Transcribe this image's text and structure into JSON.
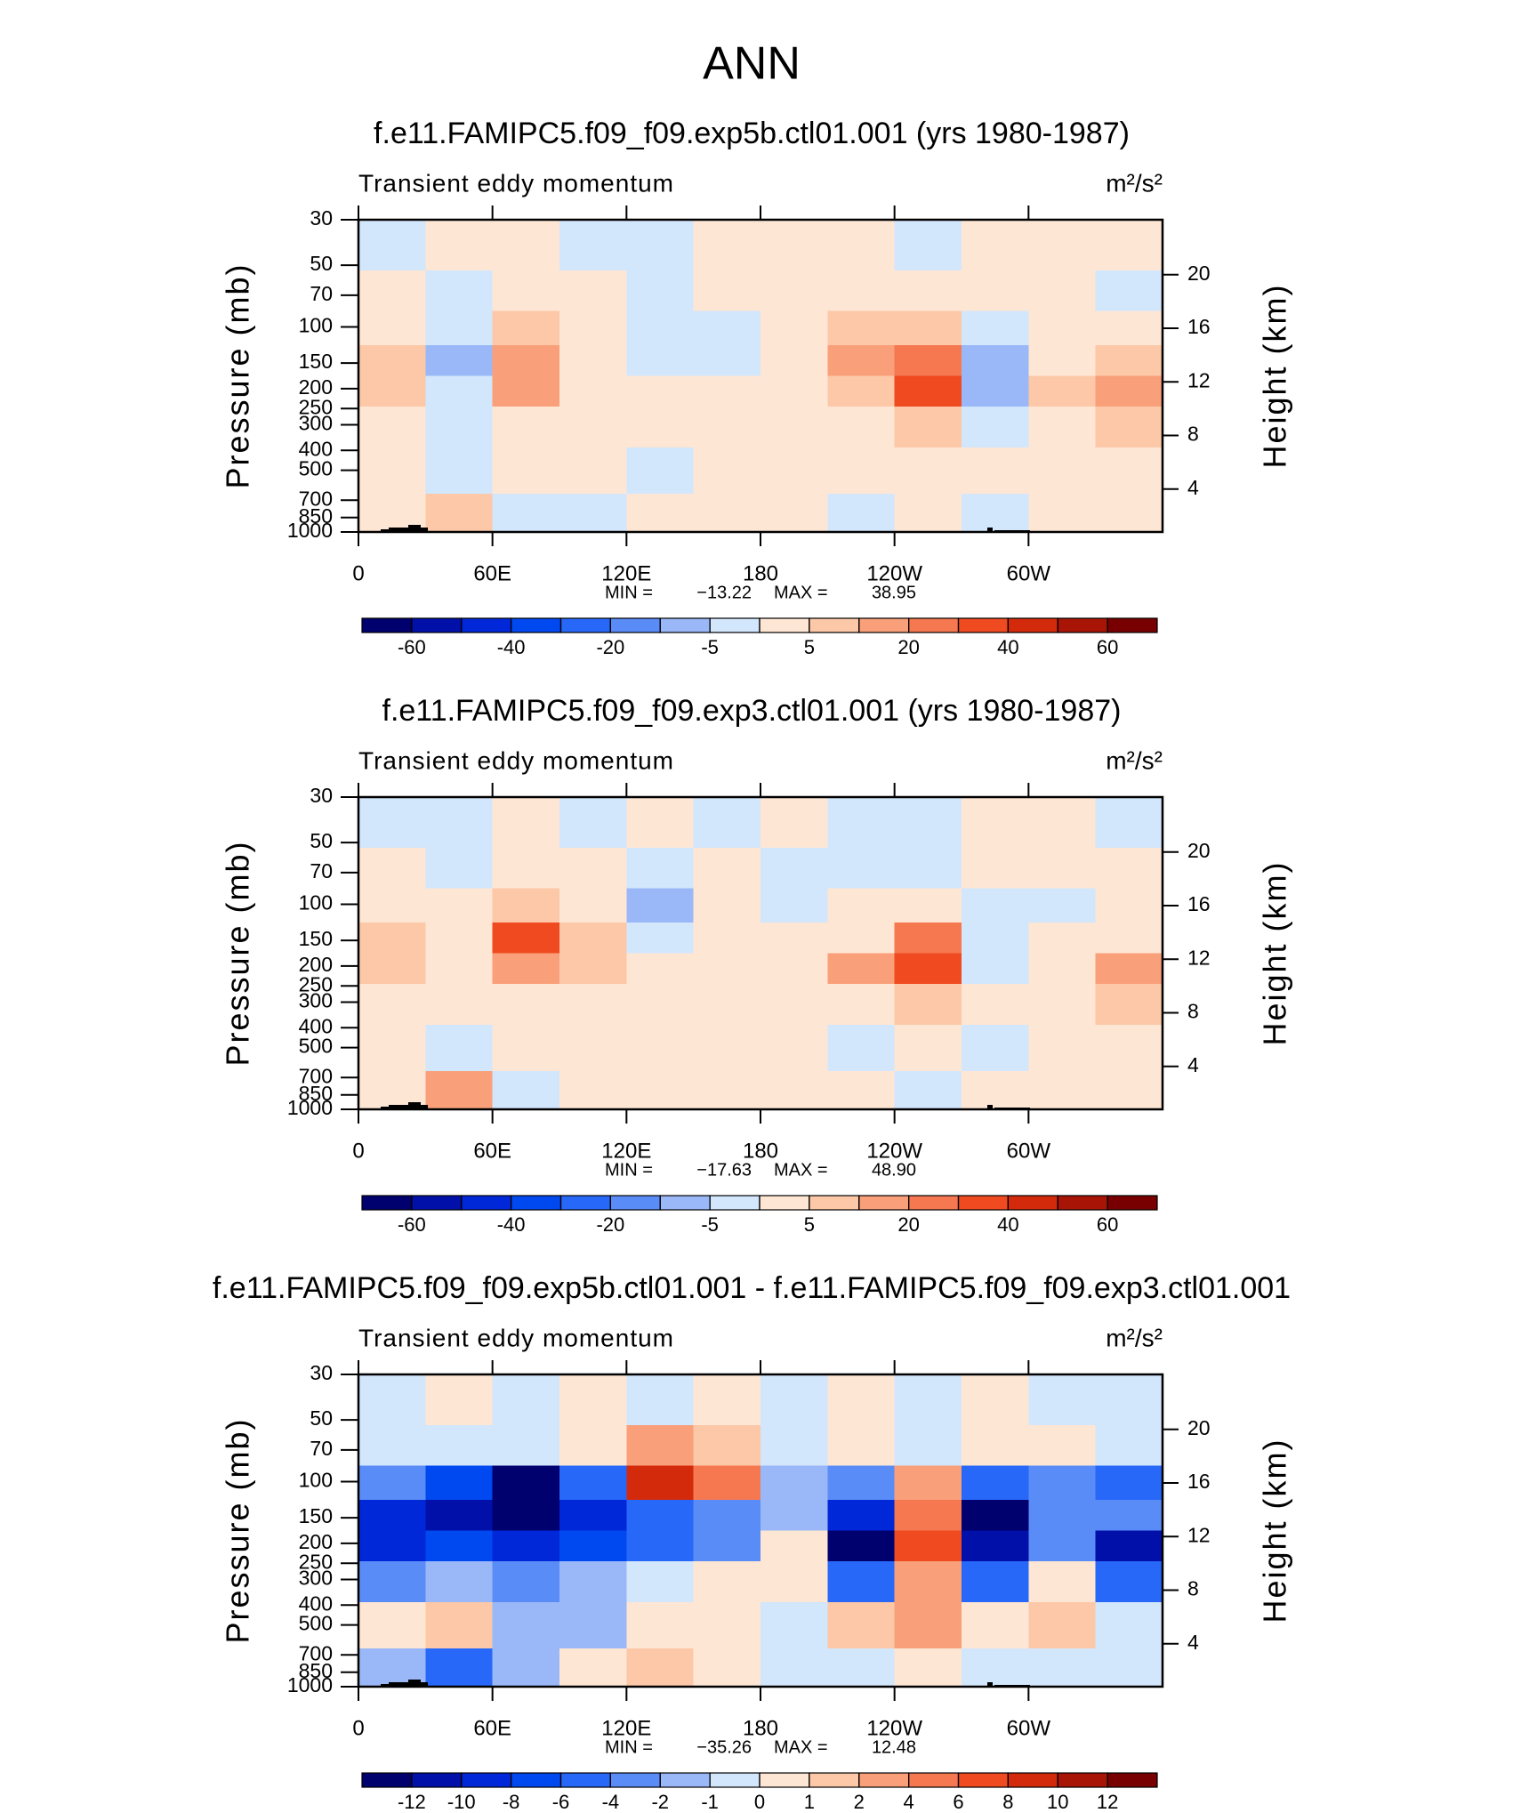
{
  "figure_title": "ANN",
  "chart_data": [
    {
      "type": "contour",
      "title": "f.e11.FAMIPC5.f09_f09.exp5b.ctl01.001 (yrs 1980-1987)",
      "left_string": "Transient eddy momentum",
      "right_string": "m²/s²",
      "ylabel": "Pressure (mb)",
      "y2label": "Height (km)",
      "x": [
        15,
        45,
        75,
        105,
        135,
        165,
        195,
        225,
        255,
        285,
        315,
        345
      ],
      "y": [
        40,
        70,
        100,
        150,
        200,
        300,
        500,
        850
      ],
      "z": [
        [
          -2,
          2,
          2,
          -2,
          -2,
          2,
          2,
          2,
          -2,
          2,
          2,
          2
        ],
        [
          2,
          -2,
          2,
          2,
          -2,
          2,
          2,
          2,
          2,
          2,
          2,
          -2
        ],
        [
          3,
          -2,
          6,
          2,
          -2,
          -2,
          2,
          6,
          8,
          -2,
          2,
          3
        ],
        [
          8,
          -6,
          14,
          3,
          -2,
          -2,
          2,
          12,
          22,
          -8,
          2,
          8
        ],
        [
          8,
          -4,
          12,
          2,
          2,
          2,
          2,
          8,
          32,
          -8,
          6,
          14
        ],
        [
          3,
          -2,
          4,
          2,
          2,
          2,
          2,
          3,
          8,
          -3,
          3,
          8
        ],
        [
          2,
          -2,
          2,
          2,
          -2,
          2,
          2,
          2,
          2,
          2,
          2,
          2
        ],
        [
          2,
          6,
          -2,
          -2,
          2,
          2,
          2,
          -2,
          2,
          -2,
          2,
          2
        ]
      ],
      "xlim": [
        0,
        360
      ],
      "xticks": [
        0,
        {
          "value": 60,
          "label": "60E"
        },
        {
          "value": 120,
          "label": "120E"
        },
        180,
        {
          "value": 240,
          "label": "120W"
        },
        {
          "value": 300,
          "label": "60W"
        }
      ],
      "ylim": [
        1000,
        30
      ],
      "yscale": "log",
      "yticks": [
        30,
        50,
        70,
        100,
        150,
        200,
        250,
        300,
        400,
        500,
        700,
        850,
        1000
      ],
      "y2lim": [
        0.8,
        24.1
      ],
      "y2ticks": [
        4,
        8,
        12,
        16,
        20
      ],
      "levels": [
        -60,
        -50,
        -40,
        -30,
        -20,
        -10,
        -5,
        0,
        5,
        10,
        20,
        30,
        40,
        50,
        60
      ],
      "colors": [
        "#00006e",
        "#0010a8",
        "#0028d8",
        "#0048f0",
        "#2868f8",
        "#5a8cf8",
        "#9ab8f8",
        "#d2e6fc",
        "#fee6d4",
        "#fcc8a8",
        "#f9a07a",
        "#f57850",
        "#f04a20",
        "#d42a0c",
        "#a81406",
        "#780000"
      ],
      "colorbar_ticks": [
        -60,
        -40,
        -20,
        -5,
        5,
        20,
        40,
        60
      ],
      "stats": {
        "names": [
          "MIN =",
          "MAX ="
        ],
        "values": [
          -13.22,
          38.95
        ],
        "value_labels": [
          "−13.22",
          "38.95"
        ]
      }
    },
    {
      "type": "contour",
      "title": "f.e11.FAMIPC5.f09_f09.exp3.ctl01.001 (yrs 1980-1987)",
      "left_string": "Transient eddy momentum",
      "right_string": "m²/s²",
      "ylabel": "Pressure (mb)",
      "y2label": "Height (km)",
      "x": [
        15,
        45,
        75,
        105,
        135,
        165,
        195,
        225,
        255,
        285,
        315,
        345
      ],
      "y": [
        40,
        70,
        100,
        150,
        200,
        300,
        500,
        850
      ],
      "z": [
        [
          -2,
          -2,
          2,
          -2,
          2,
          -2,
          2,
          -2,
          -2,
          2,
          2,
          -2
        ],
        [
          2,
          -2,
          2,
          2,
          -2,
          2,
          -2,
          -2,
          -2,
          2,
          2,
          2
        ],
        [
          3,
          2,
          8,
          2,
          -6,
          2,
          -2,
          2,
          4,
          -2,
          -2,
          2
        ],
        [
          8,
          3,
          32,
          8,
          -2,
          3,
          2,
          4,
          22,
          -3,
          2,
          4
        ],
        [
          8,
          2,
          14,
          6,
          2,
          2,
          2,
          12,
          32,
          -4,
          4,
          18
        ],
        [
          3,
          2,
          4,
          3,
          2,
          2,
          2,
          4,
          8,
          2,
          2,
          6
        ],
        [
          2,
          -2,
          2,
          2,
          2,
          2,
          2,
          -2,
          2,
          -2,
          2,
          2
        ],
        [
          2,
          12,
          -2,
          2,
          2,
          2,
          2,
          2,
          -2,
          2,
          2,
          2
        ]
      ],
      "xlim": [
        0,
        360
      ],
      "xticks": [
        0,
        {
          "value": 60,
          "label": "60E"
        },
        {
          "value": 120,
          "label": "120E"
        },
        180,
        {
          "value": 240,
          "label": "120W"
        },
        {
          "value": 300,
          "label": "60W"
        }
      ],
      "ylim": [
        1000,
        30
      ],
      "yscale": "log",
      "yticks": [
        30,
        50,
        70,
        100,
        150,
        200,
        250,
        300,
        400,
        500,
        700,
        850,
        1000
      ],
      "y2lim": [
        0.8,
        24.1
      ],
      "y2ticks": [
        4,
        8,
        12,
        16,
        20
      ],
      "levels": [
        -60,
        -50,
        -40,
        -30,
        -20,
        -10,
        -5,
        0,
        5,
        10,
        20,
        30,
        40,
        50,
        60
      ],
      "colors": [
        "#00006e",
        "#0010a8",
        "#0028d8",
        "#0048f0",
        "#2868f8",
        "#5a8cf8",
        "#9ab8f8",
        "#d2e6fc",
        "#fee6d4",
        "#fcc8a8",
        "#f9a07a",
        "#f57850",
        "#f04a20",
        "#d42a0c",
        "#a81406",
        "#780000"
      ],
      "colorbar_ticks": [
        -60,
        -40,
        -20,
        -5,
        5,
        20,
        40,
        60
      ],
      "stats": {
        "names": [
          "MIN =",
          "MAX ="
        ],
        "values": [
          -17.63,
          48.9
        ],
        "value_labels": [
          "−17.63",
          "48.90"
        ]
      }
    },
    {
      "type": "contour",
      "title": "f.e11.FAMIPC5.f09_f09.exp5b.ctl01.001 - f.e11.FAMIPC5.f09_f09.exp3.ctl01.001",
      "left_string": "Transient eddy momentum",
      "right_string": "m²/s²",
      "ylabel": "Pressure (mb)",
      "y2label": "Height (km)",
      "x": [
        15,
        45,
        75,
        105,
        135,
        165,
        195,
        225,
        255,
        285,
        315,
        345
      ],
      "y": [
        40,
        70,
        100,
        150,
        200,
        300,
        500,
        850
      ],
      "z": [
        [
          -0.5,
          0.5,
          -0.5,
          0.5,
          -0.5,
          0.5,
          -0.5,
          0.5,
          -0.5,
          0.5,
          -0.5,
          -0.5
        ],
        [
          -0.5,
          -0.5,
          -0.5,
          0.5,
          3,
          1.5,
          -0.5,
          0.5,
          -0.5,
          0.5,
          0.5,
          -0.5
        ],
        [
          -3,
          -7,
          -14,
          -4.5,
          9,
          4.5,
          -1.5,
          -3,
          3,
          -5,
          -2.5,
          -5
        ],
        [
          -9,
          -11,
          -16,
          -9,
          -5,
          -2.5,
          -1.5,
          -9,
          5,
          -13,
          -3,
          -3
        ],
        [
          -9,
          -7,
          -9,
          -7,
          -4.5,
          -2.5,
          0.5,
          -12.5,
          7,
          -11,
          -2.5,
          -11
        ],
        [
          -2.5,
          -1.5,
          -2.5,
          -1.5,
          -0.5,
          0.5,
          0.5,
          -4.5,
          3,
          -4.5,
          0.5,
          -4.5
        ],
        [
          0.5,
          1.5,
          -1.5,
          -1.5,
          0.5,
          0.5,
          -0.5,
          1.5,
          3,
          0.5,
          1.5,
          -0.5
        ],
        [
          -1.5,
          -5,
          -1.5,
          0.5,
          1.5,
          0.5,
          -0.5,
          -0.5,
          0.5,
          -0.5,
          -0.5,
          -0.5
        ]
      ],
      "xlim": [
        0,
        360
      ],
      "xticks": [
        0,
        {
          "value": 60,
          "label": "60E"
        },
        {
          "value": 120,
          "label": "120E"
        },
        180,
        {
          "value": 240,
          "label": "120W"
        },
        {
          "value": 300,
          "label": "60W"
        }
      ],
      "ylim": [
        1000,
        30
      ],
      "yscale": "log",
      "yticks": [
        30,
        50,
        70,
        100,
        150,
        200,
        250,
        300,
        400,
        500,
        700,
        850,
        1000
      ],
      "y2lim": [
        0.8,
        24.1
      ],
      "y2ticks": [
        4,
        8,
        12,
        16,
        20
      ],
      "levels": [
        -12,
        -10,
        -8,
        -6,
        -4,
        -2,
        -1,
        0,
        1,
        2,
        4,
        6,
        8,
        10,
        12
      ],
      "colors": [
        "#00006e",
        "#0010a8",
        "#0028d8",
        "#0048f0",
        "#2868f8",
        "#5a8cf8",
        "#9ab8f8",
        "#d2e6fc",
        "#fee6d4",
        "#fcc8a8",
        "#f9a07a",
        "#f57850",
        "#f04a20",
        "#d42a0c",
        "#a81406",
        "#780000"
      ],
      "colorbar_ticks": [
        -12,
        -10,
        -8,
        -6,
        -4,
        -2,
        -1,
        0,
        1,
        2,
        4,
        6,
        8,
        10,
        12
      ],
      "stats": {
        "names": [
          "MIN =",
          "MAX ="
        ],
        "values": [
          -35.26,
          12.48
        ],
        "value_labels": [
          "−35.26",
          "12.48"
        ]
      }
    }
  ]
}
